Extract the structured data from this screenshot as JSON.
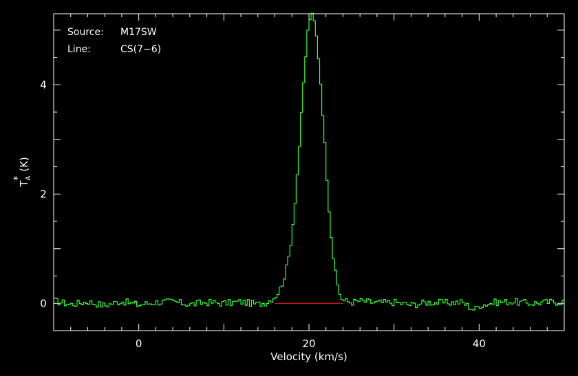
{
  "annotations": {
    "source_label": "Source:",
    "source_value": "M17SW",
    "line_label": "Line:",
    "line_value": "CS(7−6)"
  },
  "colors": {
    "background": "#000000",
    "axes": "#ffffff",
    "spectrum": "#33ff33",
    "baseline": "#ff2020"
  },
  "chart_data": {
    "type": "line",
    "title": "",
    "xlabel": "Velocity (km/s)",
    "ylabel_main": "T",
    "ylabel_sub": "A",
    "ylabel_sup": "*",
    "ylabel_unit": "(K)",
    "xlim": [
      -10,
      50
    ],
    "ylim": [
      -0.5,
      5.3
    ],
    "xticks": [
      0,
      20,
      40
    ],
    "xtick_labels": [
      "0",
      "20",
      "40"
    ],
    "yticks": [
      0,
      2,
      4
    ],
    "ytick_labels": [
      "0",
      "2",
      "4"
    ],
    "grid": false,
    "legend": "none",
    "baseline": {
      "x": [
        16,
        24
      ],
      "y": [
        0,
        0
      ]
    },
    "series": [
      {
        "style": "histogram-step",
        "x": [
          -10,
          -8,
          -6,
          -4,
          -2,
          0,
          2,
          4,
          6,
          8,
          10,
          12,
          14,
          15,
          16,
          16.5,
          17,
          17.5,
          18,
          18.5,
          19,
          19.5,
          20,
          20.5,
          21,
          21.5,
          22,
          22.5,
          23,
          23.5,
          24,
          25,
          26,
          28,
          30,
          32,
          34,
          36,
          38,
          39.5,
          40,
          42,
          44,
          46,
          48,
          50
        ],
        "y": [
          0.05,
          -0.02,
          0.03,
          -0.04,
          0.04,
          -0.03,
          0.02,
          0.03,
          -0.02,
          0.02,
          0.0,
          0.03,
          -0.02,
          0.02,
          0.12,
          0.22,
          0.42,
          0.72,
          1.25,
          2.1,
          3.15,
          4.3,
          5.2,
          5.28,
          4.75,
          3.8,
          2.6,
          1.45,
          0.65,
          0.22,
          0.05,
          0.02,
          0.04,
          0.01,
          0.02,
          -0.03,
          0.02,
          0.01,
          0.02,
          -0.12,
          -0.04,
          0.02,
          0.03,
          0.0,
          0.02,
          0.03
        ]
      }
    ]
  }
}
